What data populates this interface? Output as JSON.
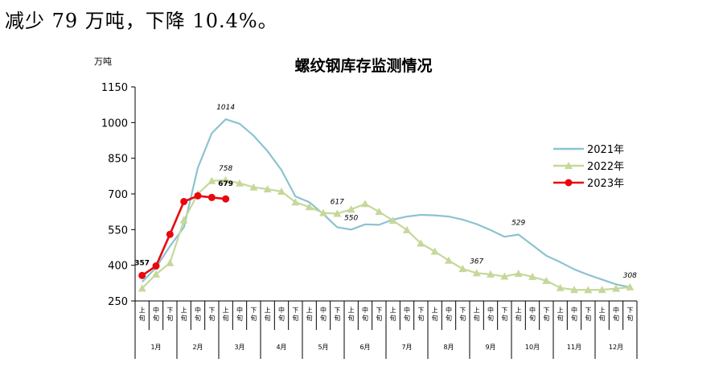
{
  "intro_text": "减少 79 万吨，下降 10.4%。",
  "chart_data": {
    "type": "line",
    "title": "螺纹钢库存监测情况",
    "ylabel": "万吨",
    "xlabel": "",
    "ylim": [
      250,
      1150
    ],
    "yticks": [
      250,
      400,
      550,
      700,
      850,
      1000,
      1150
    ],
    "grid": false,
    "legend_position": "right",
    "subcategory_labels": [
      "上\n旬",
      "中\n旬",
      "下\n旬"
    ],
    "months": [
      "1月",
      "2月",
      "3月",
      "4月",
      "5月",
      "6月",
      "7月",
      "8月",
      "9月",
      "10月",
      "11月",
      "12月"
    ],
    "series": [
      {
        "name": "2021年",
        "color": "#8cc3cf",
        "marker": "none",
        "values": [
          330,
          390,
          480,
          560,
          810,
          955,
          1014,
          995,
          945,
          880,
          800,
          690,
          665,
          615,
          560,
          550,
          572,
          570,
          592,
          605,
          612,
          610,
          605,
          592,
          573,
          548,
          520,
          529,
          485,
          440,
          413,
          383,
          360,
          340,
          320,
          308
        ],
        "annotations": [
          {
            "index": 6,
            "text": "1014"
          },
          {
            "index": 15,
            "text": "550"
          },
          {
            "index": 27,
            "text": "529"
          },
          {
            "index": 35,
            "text": "308"
          }
        ]
      },
      {
        "name": "2022年",
        "color": "#c5d89a",
        "marker": "triangle",
        "values": [
          303,
          362,
          410,
          590,
          700,
          755,
          758,
          745,
          728,
          720,
          710,
          665,
          645,
          620,
          617,
          635,
          658,
          625,
          588,
          548,
          492,
          458,
          420,
          385,
          367,
          362,
          353,
          365,
          352,
          335,
          305,
          297,
          296,
          297,
          302,
          308
        ],
        "annotations": [
          {
            "index": 6,
            "text": "758"
          },
          {
            "index": 14,
            "text": "617"
          },
          {
            "index": 24,
            "text": "367"
          }
        ]
      },
      {
        "name": "2023年",
        "color": "#e8080f",
        "marker": "circle",
        "values": [
          357,
          397,
          530,
          668,
          692,
          685,
          679
        ],
        "annotations": [
          {
            "index": 0,
            "text": "357"
          },
          {
            "index": 6,
            "text": "679"
          }
        ]
      }
    ]
  }
}
